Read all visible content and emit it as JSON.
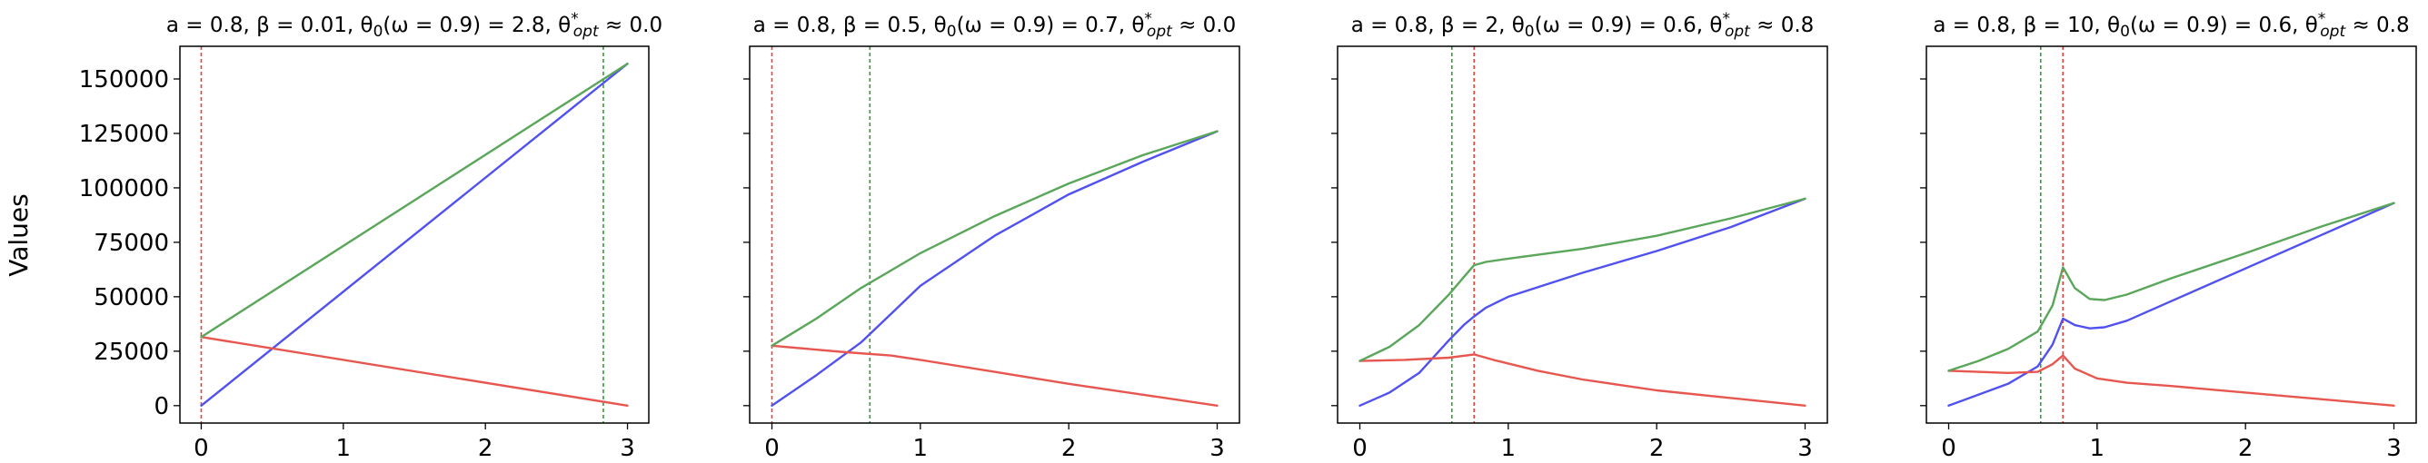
{
  "figure": {
    "ylabel": "Values"
  },
  "chart_data": [
    {
      "type": "line",
      "title": "a = 0.8, β = 0.01, θ₀(ω = 0.9) = 2.8, θ*opt ≈ 0.0",
      "title_parts": {
        "prefix": "a = 0.8, β = 0.01, θ",
        "sub0": "0",
        "mid": "(ω = 0.9) = 2.8, θ",
        "sup": "*",
        "sub1": "opt",
        "suffix": " ≈ 0.0"
      },
      "xlabel": "",
      "ylabel": "Values",
      "xlim": [
        -0.15,
        3.15
      ],
      "ylim": [
        -8000,
        165000
      ],
      "xticks": [
        0,
        1,
        2,
        3
      ],
      "yticks": [
        0,
        25000,
        50000,
        75000,
        100000,
        125000,
        150000
      ],
      "ytick_labels": [
        "0",
        "25000",
        "50000",
        "75000",
        "100000",
        "125000",
        "150000"
      ],
      "show_ytick_labels": true,
      "grid": false,
      "vlines": [
        {
          "x": 0.0,
          "color": "#e8403a"
        },
        {
          "x": 2.83,
          "color": "#3a9a3a"
        }
      ],
      "series": [
        {
          "color": "#5151f0",
          "x": [
            0,
            3
          ],
          "y": [
            0,
            157000
          ]
        },
        {
          "color": "#e8574f",
          "x": [
            0,
            3
          ],
          "y": [
            31500,
            0
          ]
        },
        {
          "color": "#5aa65a",
          "x": [
            0,
            3
          ],
          "y": [
            31500,
            157000
          ]
        }
      ]
    },
    {
      "type": "line",
      "title": "a = 0.8, β = 0.5, θ₀(ω = 0.9) = 0.7, θ*opt ≈ 0.0",
      "title_parts": {
        "prefix": "a = 0.8, β = 0.5, θ",
        "sub0": "0",
        "mid": "(ω = 0.9) = 0.7, θ",
        "sup": "*",
        "sub1": "opt",
        "suffix": " ≈ 0.0"
      },
      "xlabel": "",
      "ylabel": "",
      "xlim": [
        -0.15,
        3.15
      ],
      "ylim": [
        -8000,
        165000
      ],
      "xticks": [
        0,
        1,
        2,
        3
      ],
      "yticks": [
        0,
        25000,
        50000,
        75000,
        100000,
        125000,
        150000
      ],
      "ytick_labels": [
        "0",
        "25000",
        "50000",
        "75000",
        "100000",
        "125000",
        "150000"
      ],
      "show_ytick_labels": false,
      "grid": false,
      "vlines": [
        {
          "x": 0.0,
          "color": "#e8403a"
        },
        {
          "x": 0.66,
          "color": "#3a9a3a"
        }
      ],
      "series": [
        {
          "color": "#5151f0",
          "x": [
            0,
            0.3,
            0.6,
            0.8,
            1.0,
            1.5,
            2.0,
            2.5,
            3.0
          ],
          "y": [
            0,
            14000,
            29000,
            42000,
            55000,
            78000,
            97000,
            112000,
            126000
          ]
        },
        {
          "color": "#e8574f",
          "x": [
            0,
            0.5,
            0.8,
            1.0,
            1.5,
            2.0,
            2.5,
            3.0
          ],
          "y": [
            27500,
            24500,
            23000,
            21000,
            15500,
            10000,
            5000,
            0
          ]
        },
        {
          "color": "#5aa65a",
          "x": [
            0,
            0.3,
            0.6,
            0.8,
            1.0,
            1.5,
            2.0,
            2.5,
            3.0
          ],
          "y": [
            27500,
            40000,
            54000,
            62000,
            70000,
            87000,
            102000,
            115000,
            126000
          ]
        }
      ]
    },
    {
      "type": "line",
      "title": "a = 0.8, β = 2, θ₀(ω = 0.9) = 0.6, θ*opt ≈ 0.8",
      "title_parts": {
        "prefix": "a = 0.8, β = 2, θ",
        "sub0": "0",
        "mid": "(ω = 0.9) = 0.6, θ",
        "sup": "*",
        "sub1": "opt",
        "suffix": " ≈ 0.8"
      },
      "xlabel": "",
      "ylabel": "",
      "xlim": [
        -0.15,
        3.15
      ],
      "ylim": [
        -8000,
        165000
      ],
      "xticks": [
        0,
        1,
        2,
        3
      ],
      "yticks": [
        0,
        25000,
        50000,
        75000,
        100000,
        125000,
        150000
      ],
      "ytick_labels": [
        "0",
        "25000",
        "50000",
        "75000",
        "100000",
        "125000",
        "150000"
      ],
      "show_ytick_labels": false,
      "grid": false,
      "vlines": [
        {
          "x": 0.62,
          "color": "#3a9a3a"
        },
        {
          "x": 0.77,
          "color": "#e8403a"
        }
      ],
      "series": [
        {
          "color": "#5151f0",
          "x": [
            0,
            0.2,
            0.4,
            0.6,
            0.7,
            0.77,
            0.85,
            1.0,
            1.5,
            2.0,
            2.5,
            3.0
          ],
          "y": [
            0,
            6000,
            15000,
            30000,
            37000,
            41000,
            45000,
            50000,
            61000,
            71000,
            82000,
            95000
          ]
        },
        {
          "color": "#e8574f",
          "x": [
            0,
            0.3,
            0.6,
            0.77,
            0.9,
            1.2,
            1.5,
            2.0,
            2.5,
            3.0
          ],
          "y": [
            20500,
            21000,
            22000,
            23500,
            21000,
            16000,
            12000,
            7000,
            3500,
            0
          ]
        },
        {
          "color": "#5aa65a",
          "x": [
            0,
            0.2,
            0.4,
            0.6,
            0.7,
            0.77,
            0.85,
            1.0,
            1.5,
            2.0,
            2.5,
            3.0
          ],
          "y": [
            20500,
            27000,
            37000,
            51000,
            59000,
            64500,
            66000,
            67500,
            72000,
            78000,
            86000,
            95000
          ]
        }
      ]
    },
    {
      "type": "line",
      "title": "a = 0.8, β = 10, θ₀(ω = 0.9) = 0.6, θ*opt ≈ 0.8",
      "title_parts": {
        "prefix": "a = 0.8, β = 10, θ",
        "sub0": "0",
        "mid": "(ω = 0.9) = 0.6, θ",
        "sup": "*",
        "sub1": "opt",
        "suffix": " ≈ 0.8"
      },
      "xlabel": "",
      "ylabel": "",
      "xlim": [
        -0.15,
        3.15
      ],
      "ylim": [
        -8000,
        165000
      ],
      "xticks": [
        0,
        1,
        2,
        3
      ],
      "yticks": [
        0,
        25000,
        50000,
        75000,
        100000,
        125000,
        150000
      ],
      "ytick_labels": [
        "0",
        "25000",
        "50000",
        "75000",
        "100000",
        "125000",
        "150000"
      ],
      "show_ytick_labels": false,
      "grid": false,
      "vlines": [
        {
          "x": 0.62,
          "color": "#3a9a3a"
        },
        {
          "x": 0.77,
          "color": "#e8403a"
        }
      ],
      "series": [
        {
          "color": "#5151f0",
          "x": [
            0,
            0.2,
            0.4,
            0.6,
            0.7,
            0.77,
            0.85,
            0.95,
            1.05,
            1.2,
            1.5,
            2.0,
            2.5,
            3.0
          ],
          "y": [
            0,
            5000,
            10000,
            18000,
            28000,
            40000,
            37000,
            35500,
            36000,
            39000,
            48000,
            63000,
            78000,
            93000
          ]
        },
        {
          "color": "#e8574f",
          "x": [
            0,
            0.2,
            0.4,
            0.6,
            0.7,
            0.77,
            0.85,
            1.0,
            1.2,
            1.5,
            2.0,
            2.5,
            3.0
          ],
          "y": [
            16000,
            15500,
            15000,
            15500,
            19000,
            23000,
            17000,
            12500,
            10500,
            9000,
            6000,
            3000,
            0
          ]
        },
        {
          "color": "#5aa65a",
          "x": [
            0,
            0.2,
            0.4,
            0.6,
            0.7,
            0.77,
            0.85,
            0.95,
            1.05,
            1.2,
            1.5,
            2.0,
            2.5,
            3.0
          ],
          "y": [
            16000,
            20500,
            26000,
            34000,
            46000,
            63500,
            54000,
            49000,
            48500,
            51000,
            58500,
            70000,
            82000,
            93000
          ]
        }
      ]
    }
  ]
}
